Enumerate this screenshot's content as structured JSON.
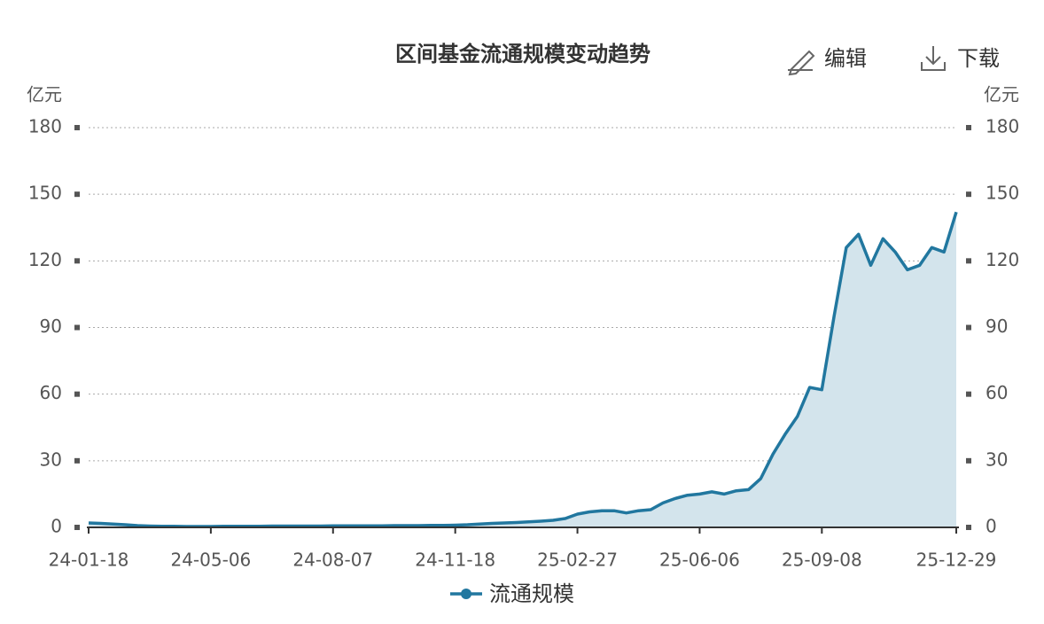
{
  "toolbar": {
    "edit": "编辑",
    "download": "下载"
  },
  "chart_data": {
    "type": "area",
    "title": "区间基金流通规模变动趋势",
    "y_unit": "亿元",
    "categories": [
      "24-01-18",
      null,
      null,
      null,
      null,
      null,
      null,
      null,
      null,
      null,
      "24-05-06",
      null,
      null,
      null,
      null,
      null,
      null,
      null,
      null,
      null,
      "24-08-07",
      null,
      null,
      null,
      null,
      null,
      null,
      null,
      null,
      null,
      "24-11-18",
      null,
      null,
      null,
      null,
      null,
      null,
      null,
      null,
      null,
      "25-02-27",
      null,
      null,
      null,
      null,
      null,
      null,
      null,
      null,
      null,
      "25-06-06",
      null,
      null,
      null,
      null,
      null,
      null,
      null,
      null,
      null,
      "25-09-08",
      null,
      null,
      null,
      null,
      null,
      null,
      null,
      null,
      null,
      null,
      "25-12-29"
    ],
    "series": [
      {
        "name": "流通规模",
        "color": "#21779f",
        "fill": "#d3e4ec",
        "values": [
          2,
          1.8,
          1.5,
          1.2,
          0.8,
          0.6,
          0.5,
          0.5,
          0.4,
          0.4,
          0.4,
          0.5,
          0.5,
          0.5,
          0.5,
          0.6,
          0.6,
          0.6,
          0.6,
          0.6,
          0.7,
          0.7,
          0.7,
          0.7,
          0.7,
          0.8,
          0.8,
          0.8,
          0.9,
          0.9,
          1.0,
          1.2,
          1.5,
          1.8,
          2,
          2.2,
          2.5,
          2.8,
          3.2,
          4,
          6,
          7,
          7.5,
          7.5,
          6.5,
          7.5,
          8,
          11,
          13,
          14.5,
          15,
          16,
          15,
          16.5,
          17,
          22,
          33,
          42,
          50,
          63,
          62,
          95,
          126,
          132,
          118,
          130,
          124,
          116,
          118,
          126,
          124,
          142
        ]
      }
    ],
    "ylim": [
      0,
      180
    ],
    "yticks": [
      0,
      30,
      60,
      90,
      120,
      150,
      180
    ],
    "grid": true
  }
}
